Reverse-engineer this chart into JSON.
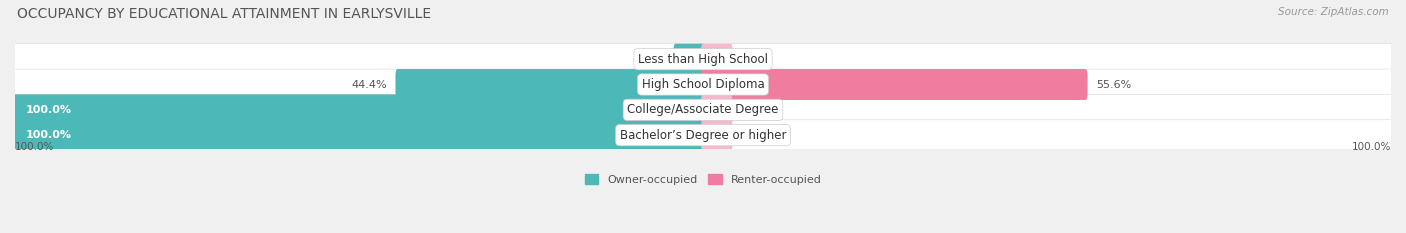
{
  "title": "OCCUPANCY BY EDUCATIONAL ATTAINMENT IN EARLYSVILLE",
  "source": "Source: ZipAtlas.com",
  "categories": [
    "Less than High School",
    "High School Diploma",
    "College/Associate Degree",
    "Bachelor’s Degree or higher"
  ],
  "owner_pct": [
    0.0,
    44.4,
    100.0,
    100.0
  ],
  "renter_pct": [
    0.0,
    55.6,
    0.0,
    0.0
  ],
  "owner_color": "#4db8b8",
  "renter_color": "#f07ca0",
  "renter_color_light": "#f5b8ce",
  "bg_color": "#f0f0f0",
  "bar_bg_color": "#ffffff",
  "bar_border_color": "#dddddd",
  "title_fontsize": 10,
  "source_fontsize": 7.5,
  "label_fontsize": 8,
  "cat_fontsize": 8.5,
  "bar_height": 0.62,
  "owner_label_color": "#555555",
  "renter_label_color": "#555555",
  "owner_label_white": true,
  "legend_owner": "Owner-occupied",
  "legend_renter": "Renter-occupied"
}
